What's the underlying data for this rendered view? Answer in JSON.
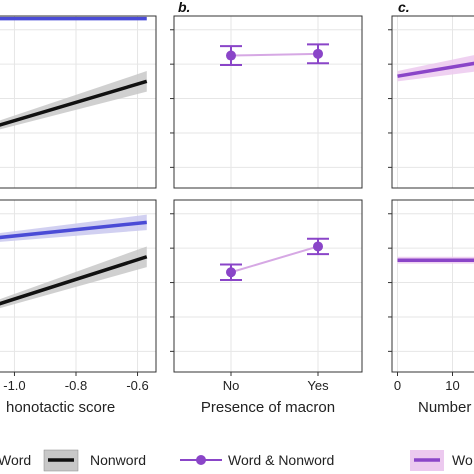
{
  "colors": {
    "word": "#4a4bd6",
    "word_band": "#c9c8ef",
    "nonword": "#111111",
    "nonword_band": "#c8c8c8",
    "combined": "#8a45c8",
    "combined_line": "#d6a8e4",
    "combined_band": "#ecc9ef",
    "grid": "#e6e6e6",
    "border": "#333333"
  },
  "panel_labels": {
    "b": "b.",
    "c": "c."
  },
  "chart_data": [
    {
      "panel": "a",
      "type": "line",
      "row": "top",
      "xlabel": "honotactic score",
      "xlim": [
        -1.06,
        -0.54
      ],
      "ylim": [
        0,
        1
      ],
      "series": [
        {
          "name": "Word",
          "x": [
            -1.06,
            -0.57
          ],
          "y": [
            0.985,
            0.985
          ],
          "band": [
            0.0,
            0.0
          ]
        },
        {
          "name": "Nonword",
          "x": [
            -1.06,
            -0.57
          ],
          "y": [
            0.36,
            0.62
          ],
          "band": [
            0.025,
            0.06
          ]
        }
      ]
    },
    {
      "panel": "a",
      "type": "line",
      "row": "bottom",
      "xlabel": "honotactic score",
      "x_ticks": [
        "-1.0",
        "-0.8",
        "-0.6"
      ],
      "x_tick_values": [
        -1.0,
        -0.8,
        -0.6
      ],
      "xlim": [
        -1.06,
        -0.54
      ],
      "ylim": [
        0,
        1
      ],
      "series": [
        {
          "name": "Word",
          "x": [
            -1.06,
            -0.57
          ],
          "y": [
            0.78,
            0.87
          ],
          "band": [
            0.025,
            0.045
          ]
        },
        {
          "name": "Nonword",
          "x": [
            -1.06,
            -0.57
          ],
          "y": [
            0.39,
            0.67
          ],
          "band": [
            0.025,
            0.06
          ]
        }
      ]
    },
    {
      "panel": "b",
      "type": "scatter",
      "row": "top",
      "categories": [
        "No",
        "Yes"
      ],
      "ylim": [
        0,
        1
      ],
      "series": [
        {
          "name": "Word & Nonword",
          "y": [
            0.77,
            0.78
          ],
          "err": [
            0.055,
            0.055
          ]
        }
      ]
    },
    {
      "panel": "b",
      "type": "scatter",
      "row": "bottom",
      "xlabel": "Presence of macron",
      "categories": [
        "No",
        "Yes"
      ],
      "ylim": [
        0,
        1
      ],
      "series": [
        {
          "name": "Word & Nonword",
          "y": [
            0.58,
            0.73
          ],
          "err": [
            0.045,
            0.045
          ]
        }
      ]
    },
    {
      "panel": "c",
      "type": "line",
      "row": "top",
      "xlabel": "Number",
      "x_ticks": [
        "0",
        "10"
      ],
      "x_tick_values": [
        0,
        10
      ],
      "xlim": [
        -1,
        15
      ],
      "ylim": [
        0,
        1
      ],
      "series": [
        {
          "name": "Word & Nonword",
          "x": [
            0,
            15
          ],
          "y": [
            0.65,
            0.73
          ],
          "band": [
            0.03,
            0.05
          ]
        }
      ]
    },
    {
      "panel": "c",
      "type": "line",
      "row": "bottom",
      "xlabel": "Number",
      "x_ticks": [
        "0",
        "10"
      ],
      "x_tick_values": [
        0,
        10
      ],
      "xlim": [
        -1,
        15
      ],
      "ylim": [
        0,
        1
      ],
      "series": [
        {
          "name": "Word & Nonword",
          "x": [
            0,
            15
          ],
          "y": [
            0.65,
            0.65
          ],
          "band": [
            0.02,
            0.02
          ]
        }
      ]
    }
  ],
  "axis_titles": {
    "a": "honotactic score",
    "b": "Presence of macron",
    "c": "Number"
  },
  "b_ticks": [
    "No",
    "Yes"
  ],
  "a_ticks": [
    "-1.0",
    "-0.8",
    "-0.6"
  ],
  "c_ticks": [
    "0",
    "10"
  ],
  "legend": {
    "word": "Word",
    "nonword": "Nonword",
    "combined": "Word & Nonword",
    "combined_c": "Wo"
  }
}
